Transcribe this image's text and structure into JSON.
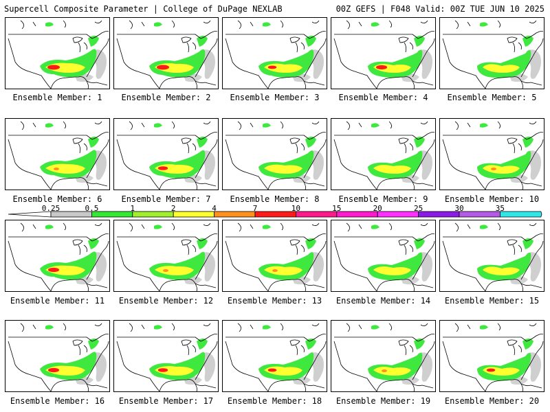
{
  "header": {
    "left": "Supercell Composite Parameter | College of DuPage NEXLAB",
    "right": "00Z GEFS | F048 Valid: 00Z TUE JUN 10 2025"
  },
  "members": [
    {
      "label": "Ensemble Member: 1",
      "intensity": 1.0
    },
    {
      "label": "Ensemble Member: 2",
      "intensity": 1.0
    },
    {
      "label": "Ensemble Member: 3",
      "intensity": 0.7
    },
    {
      "label": "Ensemble Member: 4",
      "intensity": 0.9
    },
    {
      "label": "Ensemble Member: 5",
      "intensity": 0.4
    },
    {
      "label": "Ensemble Member: 6",
      "intensity": 0.5
    },
    {
      "label": "Ensemble Member: 7",
      "intensity": 0.8
    },
    {
      "label": "Ensemble Member: 8",
      "intensity": 0.3
    },
    {
      "label": "Ensemble Member: 9",
      "intensity": 0.4
    },
    {
      "label": "Ensemble Member: 10",
      "intensity": 0.5
    },
    {
      "label": "Ensemble Member: 11",
      "intensity": 0.9
    },
    {
      "label": "Ensemble Member: 12",
      "intensity": 0.6
    },
    {
      "label": "Ensemble Member: 13",
      "intensity": 0.5
    },
    {
      "label": "Ensemble Member: 14",
      "intensity": 0.3
    },
    {
      "label": "Ensemble Member: 15",
      "intensity": 0.4
    },
    {
      "label": "Ensemble Member: 16",
      "intensity": 0.9
    },
    {
      "label": "Ensemble Member: 17",
      "intensity": 0.8
    },
    {
      "label": "Ensemble Member: 18",
      "intensity": 0.7
    },
    {
      "label": "Ensemble Member: 19",
      "intensity": 0.5
    },
    {
      "label": "Ensemble Member: 20",
      "intensity": 0.7
    }
  ],
  "colorbar": {
    "ticks": [
      "0.25",
      "0.5",
      "1",
      "2",
      "4",
      "7",
      "10",
      "15",
      "20",
      "25",
      "30",
      "35"
    ],
    "colors": [
      "#c8c8c8",
      "#36e836",
      "#a0f030",
      "#ffff30",
      "#ff9020",
      "#ff1a1a",
      "#ff1a8c",
      "#ff1acd",
      "#ff30ff",
      "#8c1ae6",
      "#b45ae6",
      "#30e6e6"
    ]
  }
}
